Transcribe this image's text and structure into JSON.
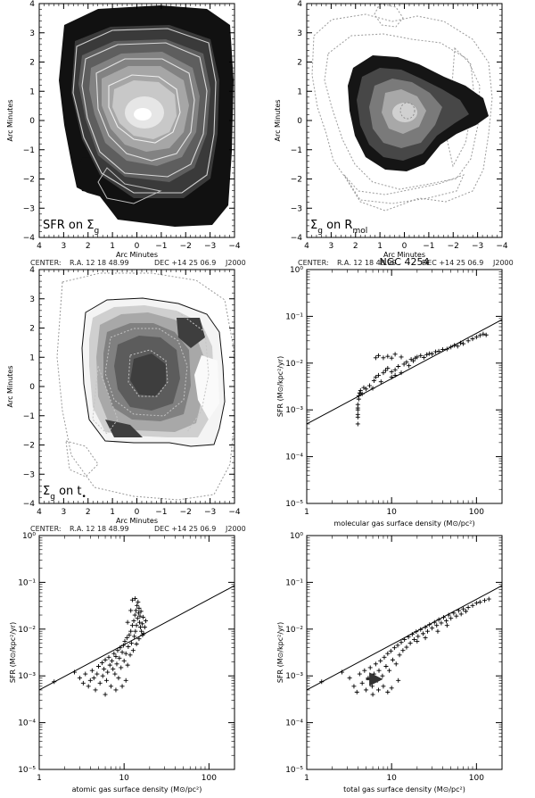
{
  "center_caption": {
    "label": "CENTER:",
    "ra": "R.A. 12 18 48.99",
    "dec": "DEC  +14 25 06.9",
    "epoch": "J2000"
  },
  "chart_data": [
    {
      "type": "map",
      "corner_label": {
        "text": "SFR on Σ",
        "sub": "g"
      },
      "xlabel": "Arc Minutes",
      "ylabel": "Arc Minutes",
      "xlim": [
        4,
        -4
      ],
      "ylim": [
        -4,
        4
      ],
      "xticks": [
        4,
        3,
        2,
        1,
        0,
        -1,
        -2,
        -3,
        -4
      ],
      "yticks": [
        -4,
        -3,
        -2,
        -1,
        0,
        1,
        2,
        3,
        4
      ],
      "tick_labels_x": [
        "4",
        "3",
        "2",
        "1",
        "0",
        "−1",
        "−2",
        "−3",
        "−4"
      ],
      "tick_labels_y": [
        "−4",
        "−3",
        "−2",
        "−1",
        "0",
        "1",
        "2",
        "3",
        "4"
      ],
      "fill_levels": [
        "#111111",
        "#3a3a3a",
        "#5e5e5e",
        "#828282",
        "#a6a6a6",
        "#c8c8c8",
        "#e6e6e6"
      ],
      "contours": "solid"
    },
    {
      "type": "map",
      "corner_label": {
        "text": "Σ",
        "sub": "g",
        "tail": " on R",
        "tail_sub": "mol"
      },
      "xlabel": "Arc Minutes",
      "ylabel": "Arc Minutes",
      "xlim": [
        4,
        -4
      ],
      "ylim": [
        -4,
        4
      ],
      "xticks": [
        4,
        3,
        2,
        1,
        0,
        -1,
        -2,
        -3,
        -4
      ],
      "yticks": [
        -4,
        -3,
        -2,
        -1,
        0,
        1,
        2,
        3,
        4
      ],
      "tick_labels_x": [
        "4",
        "3",
        "2",
        "1",
        "0",
        "−1",
        "−2",
        "−3",
        "−4"
      ],
      "tick_labels_y": [
        "−4",
        "−3",
        "−2",
        "−1",
        "0",
        "1",
        "2",
        "3",
        "4"
      ],
      "fill_levels": [
        "#151515",
        "#474747",
        "#7a7a7a",
        "#a8a8a8",
        "#d0d0d0"
      ],
      "contours": "dotted"
    },
    {
      "type": "map",
      "corner_label": {
        "text": "Σ",
        "sub": "g",
        "tail": " on t",
        "tail_sub": "•"
      },
      "xlabel": "Arc Minutes",
      "ylabel": "Arc Minutes",
      "xlim": [
        4,
        -4
      ],
      "ylim": [
        -4,
        4
      ],
      "xticks": [
        4,
        3,
        2,
        1,
        0,
        -1,
        -2,
        -3,
        -4
      ],
      "yticks": [
        -4,
        -3,
        -2,
        -1,
        0,
        1,
        2,
        3,
        4
      ],
      "tick_labels_x": [
        "4",
        "3",
        "2",
        "1",
        "0",
        "−1",
        "−2",
        "−3",
        "−4"
      ],
      "tick_labels_y": [
        "−4",
        "−3",
        "−2",
        "−1",
        "0",
        "1",
        "2",
        "3",
        "4"
      ],
      "fill_levels": [
        "#f4f4f4",
        "#cfcfcf",
        "#a8a8a8",
        "#808080",
        "#5c5c5c",
        "#3e3e3e"
      ],
      "contours": "dotted"
    },
    {
      "type": "scatter",
      "title": "NGC 4254",
      "xlabel": "molecular gas surface density (M⊙/pc²)",
      "ylabel": "SFR (M⊙/kpc²/yr)",
      "xscale": "log",
      "yscale": "log",
      "xlim": [
        1,
        200
      ],
      "ylim": [
        1e-05,
        1
      ],
      "xtick_labels": [
        "1",
        "10",
        "100"
      ],
      "ytick_labels": [
        "10⁻⁵",
        "10⁻⁴",
        "10⁻³",
        "10⁻²",
        "10⁻¹",
        "10⁰"
      ],
      "line": [
        [
          1,
          0.0005
        ],
        [
          200,
          0.085
        ]
      ],
      "points": [
        [
          4,
          0.0005
        ],
        [
          4,
          0.0007
        ],
        [
          4,
          0.0008
        ],
        [
          4,
          0.001
        ],
        [
          4,
          0.0011
        ],
        [
          4,
          0.0013
        ],
        [
          4.1,
          0.0017
        ],
        [
          4.1,
          0.002
        ],
        [
          4.2,
          0.0023
        ],
        [
          4.3,
          0.0026
        ],
        [
          4.5,
          0.0022
        ],
        [
          4.7,
          0.003
        ],
        [
          5,
          0.0028
        ],
        [
          5.5,
          0.0033
        ],
        [
          6,
          0.0029
        ],
        [
          6.2,
          0.0042
        ],
        [
          6.5,
          0.005
        ],
        [
          7,
          0.0055
        ],
        [
          7.5,
          0.004
        ],
        [
          8,
          0.0062
        ],
        [
          8.5,
          0.007
        ],
        [
          9,
          0.0078
        ],
        [
          10,
          0.0065
        ],
        [
          10,
          0.005
        ],
        [
          11,
          0.0072
        ],
        [
          11,
          0.0055
        ],
        [
          12,
          0.0085
        ],
        [
          13,
          0.0062
        ],
        [
          14,
          0.0095
        ],
        [
          15,
          0.0105
        ],
        [
          16,
          0.0088
        ],
        [
          17,
          0.012
        ],
        [
          18,
          0.0112
        ],
        [
          19,
          0.0128
        ],
        [
          20,
          0.0135
        ],
        [
          22,
          0.0145
        ],
        [
          24,
          0.0132
        ],
        [
          26,
          0.0152
        ],
        [
          28,
          0.016
        ],
        [
          30,
          0.0158
        ],
        [
          33,
          0.0175
        ],
        [
          36,
          0.018
        ],
        [
          40,
          0.0195
        ],
        [
          45,
          0.02
        ],
        [
          50,
          0.022
        ],
        [
          55,
          0.024
        ],
        [
          60,
          0.023
        ],
        [
          65,
          0.027
        ],
        [
          70,
          0.026
        ],
        [
          80,
          0.03
        ],
        [
          90,
          0.033
        ],
        [
          100,
          0.036
        ],
        [
          110,
          0.039
        ],
        [
          120,
          0.042
        ],
        [
          130,
          0.04
        ],
        [
          8,
          0.013
        ],
        [
          9,
          0.014
        ],
        [
          7,
          0.0145
        ],
        [
          6.5,
          0.013
        ],
        [
          10,
          0.0128
        ],
        [
          13,
          0.0135
        ],
        [
          11,
          0.0155
        ]
      ]
    },
    {
      "type": "scatter",
      "xlabel": "atomic gas surface density (M⊙/pc²)",
      "ylabel": "SFR (M⊙/kpc²/yr)",
      "xscale": "log",
      "yscale": "log",
      "xlim": [
        1,
        200
      ],
      "ylim": [
        1e-05,
        1
      ],
      "xtick_labels": [
        "1",
        "10",
        "100"
      ],
      "ytick_labels": [
        "10⁻⁵",
        "10⁻⁴",
        "10⁻³",
        "10⁻²",
        "10⁻¹",
        "10⁰"
      ],
      "line": [
        [
          1,
          0.0005
        ],
        [
          200,
          0.085
        ]
      ],
      "points": [
        [
          1.5,
          0.00075
        ],
        [
          2.6,
          0.0012
        ],
        [
          3,
          0.0009
        ],
        [
          3.3,
          0.0007
        ],
        [
          3.5,
          0.0011
        ],
        [
          3.8,
          0.0006
        ],
        [
          4,
          0.0008
        ],
        [
          4.2,
          0.0013
        ],
        [
          4.4,
          0.0009
        ],
        [
          4.6,
          0.0005
        ],
        [
          4.8,
          0.0011
        ],
        [
          5,
          0.0016
        ],
        [
          5.2,
          0.0007
        ],
        [
          5.5,
          0.0019
        ],
        [
          5.6,
          0.001
        ],
        [
          5.8,
          0.0014
        ],
        [
          6,
          0.0022
        ],
        [
          6.2,
          0.0008
        ],
        [
          6.4,
          0.0012
        ],
        [
          6.6,
          0.0025
        ],
        [
          6.8,
          0.0017
        ],
        [
          7,
          0.0006
        ],
        [
          7.2,
          0.0021
        ],
        [
          7.4,
          0.0014
        ],
        [
          7.6,
          0.003
        ],
        [
          7.8,
          0.0011
        ],
        [
          8,
          0.0026
        ],
        [
          8.2,
          0.0018
        ],
        [
          8.4,
          0.0035
        ],
        [
          8.6,
          0.0009
        ],
        [
          8.8,
          0.0024
        ],
        [
          9,
          0.004
        ],
        [
          9.2,
          0.0015
        ],
        [
          9.5,
          0.0032
        ],
        [
          9.8,
          0.0045
        ],
        [
          10,
          0.0021
        ],
        [
          10.2,
          0.0055
        ],
        [
          10.5,
          0.003
        ],
        [
          10.8,
          0.0065
        ],
        [
          11,
          0.0017
        ],
        [
          11.2,
          0.0042
        ],
        [
          11.5,
          0.0075
        ],
        [
          11.8,
          0.0028
        ],
        [
          12,
          0.009
        ],
        [
          12.2,
          0.005
        ],
        [
          12.5,
          0.012
        ],
        [
          12.8,
          0.0035
        ],
        [
          13,
          0.015
        ],
        [
          13.2,
          0.007
        ],
        [
          13.4,
          0.02
        ],
        [
          13.6,
          0.009
        ],
        [
          13.8,
          0.025
        ],
        [
          14,
          0.012
        ],
        [
          14.2,
          0.032
        ],
        [
          14.4,
          0.017
        ],
        [
          14.6,
          0.038
        ],
        [
          14.8,
          0.022
        ],
        [
          15,
          0.028
        ],
        [
          15.2,
          0.014
        ],
        [
          15.4,
          0.019
        ],
        [
          15.6,
          0.011
        ],
        [
          15.8,
          0.024
        ],
        [
          16,
          0.009
        ],
        [
          16.4,
          0.013
        ],
        [
          16.8,
          0.018
        ],
        [
          17,
          0.008
        ],
        [
          17.5,
          0.011
        ],
        [
          18,
          0.015
        ],
        [
          12.5,
          0.042
        ],
        [
          13.5,
          0.045
        ],
        [
          12,
          0.025
        ],
        [
          11,
          0.014
        ],
        [
          9.5,
          0.0006
        ],
        [
          8,
          0.0005
        ],
        [
          6,
          0.0004
        ],
        [
          10.5,
          0.0008
        ],
        [
          14,
          0.0048
        ],
        [
          15,
          0.0062
        ],
        [
          16.5,
          0.0075
        ]
      ]
    },
    {
      "type": "scatter",
      "xlabel": "total gas surface density (M⊙/pc²)",
      "ylabel": "SFR (M⊙/kpc²/yr)",
      "xscale": "log",
      "yscale": "log",
      "xlim": [
        1,
        200
      ],
      "ylim": [
        1e-05,
        1
      ],
      "xtick_labels": [
        "1",
        "10",
        "100"
      ],
      "ytick_labels": [
        "10⁻⁵",
        "10⁻⁴",
        "10⁻³",
        "10⁻²",
        "10⁻¹",
        "10⁰"
      ],
      "line": [
        [
          1,
          0.0005
        ],
        [
          200,
          0.085
        ]
      ],
      "arrow": [
        [
          5,
          0.00085
        ],
        [
          7.5,
          0.00085
        ]
      ],
      "points": [
        [
          1.5,
          0.00075
        ],
        [
          2.6,
          0.0012
        ],
        [
          3.2,
          0.0009
        ],
        [
          3.6,
          0.0006
        ],
        [
          3.9,
          0.00045
        ],
        [
          4.2,
          0.0011
        ],
        [
          4.5,
          0.0007
        ],
        [
          4.8,
          0.0013
        ],
        [
          5,
          0.0005
        ],
        [
          5.3,
          0.0009
        ],
        [
          5.6,
          0.0015
        ],
        [
          5.9,
          0.0006
        ],
        [
          6.2,
          0.0011
        ],
        [
          6.5,
          0.0018
        ],
        [
          6.8,
          0.0008
        ],
        [
          7.1,
          0.0013
        ],
        [
          7.4,
          0.0021
        ],
        [
          7.8,
          0.001
        ],
        [
          8.2,
          0.0025
        ],
        [
          8.6,
          0.0016
        ],
        [
          9,
          0.003
        ],
        [
          9.4,
          0.0013
        ],
        [
          9.8,
          0.0034
        ],
        [
          10.3,
          0.0022
        ],
        [
          10.8,
          0.004
        ],
        [
          11.3,
          0.0018
        ],
        [
          11.8,
          0.0045
        ],
        [
          12.4,
          0.0028
        ],
        [
          13,
          0.0052
        ],
        [
          13.6,
          0.0035
        ],
        [
          14.2,
          0.006
        ],
        [
          15,
          0.0041
        ],
        [
          15.8,
          0.0068
        ],
        [
          16.6,
          0.005
        ],
        [
          17.5,
          0.0078
        ],
        [
          18.5,
          0.006
        ],
        [
          19.5,
          0.0088
        ],
        [
          20.5,
          0.007
        ],
        [
          22,
          0.0098
        ],
        [
          23.5,
          0.008
        ],
        [
          25,
          0.011
        ],
        [
          26.5,
          0.009
        ],
        [
          28,
          0.0125
        ],
        [
          30,
          0.0105
        ],
        [
          32,
          0.014
        ],
        [
          34,
          0.012
        ],
        [
          36,
          0.016
        ],
        [
          38.5,
          0.0135
        ],
        [
          41,
          0.0178
        ],
        [
          44,
          0.015
        ],
        [
          47,
          0.02
        ],
        [
          50,
          0.017
        ],
        [
          54,
          0.022
        ],
        [
          58,
          0.019
        ],
        [
          62,
          0.025
        ],
        [
          66,
          0.021
        ],
        [
          70,
          0.027
        ],
        [
          75,
          0.024
        ],
        [
          80,
          0.029
        ],
        [
          90,
          0.032
        ],
        [
          100,
          0.036
        ],
        [
          110,
          0.038
        ],
        [
          125,
          0.041
        ],
        [
          140,
          0.044
        ],
        [
          6,
          0.0004
        ],
        [
          8,
          0.0006
        ],
        [
          10,
          0.00055
        ],
        [
          12,
          0.0008
        ],
        [
          9,
          0.00045
        ],
        [
          7,
          0.0005
        ],
        [
          20,
          0.0055
        ],
        [
          25,
          0.0065
        ],
        [
          35,
          0.009
        ],
        [
          45,
          0.012
        ]
      ]
    }
  ]
}
